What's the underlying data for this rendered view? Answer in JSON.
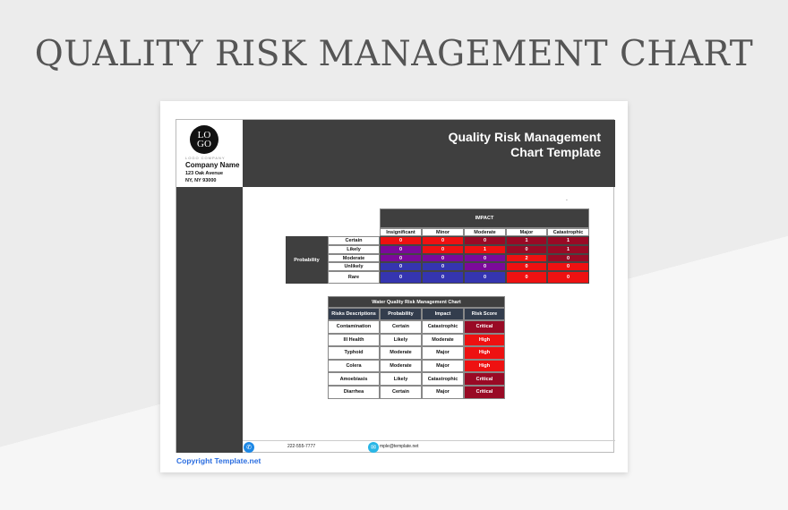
{
  "page_title": "QUALITY RISK MANAGEMENT CHART",
  "company": {
    "logo_text": "LOGO",
    "logo_sub": "LOGO COMPANY",
    "name": "Company Name",
    "address1": "123 Oak Avenue",
    "address2": "NY, NY 93000"
  },
  "header": {
    "title_line1": "Quality Risk Management",
    "title_line2": "Chart Template"
  },
  "colors": {
    "red": "#ee1111",
    "dark_red": "#990a25",
    "purple": "#7b0a9a",
    "blue": "#3535b0",
    "header_dark": "#3f3f3f",
    "table_header": "#333d4d"
  },
  "matrix": {
    "impact_label": "IMPACT",
    "probability_label": "Probability",
    "columns": [
      "Insignificant",
      "Minor",
      "Moderate",
      "Major",
      "Catastrophic"
    ],
    "rows": [
      {
        "label": "Certain",
        "values": [
          "0",
          "0",
          "0",
          "1",
          "1"
        ],
        "levels": [
          "red",
          "red",
          "dark_red",
          "dark_red",
          "dark_red"
        ]
      },
      {
        "label": "Likely",
        "values": [
          "0",
          "0",
          "1",
          "0",
          "1"
        ],
        "levels": [
          "purple",
          "red",
          "red",
          "dark_red",
          "dark_red"
        ]
      },
      {
        "label": "Moderate",
        "values": [
          "0",
          "0",
          "0",
          "2",
          "0"
        ],
        "levels": [
          "purple",
          "purple",
          "purple",
          "red",
          "dark_red"
        ]
      },
      {
        "label": "Unlikely",
        "values": [
          "0",
          "0",
          "0",
          "0",
          "0"
        ],
        "levels": [
          "blue",
          "blue",
          "purple",
          "red",
          "red"
        ]
      },
      {
        "label": "Rare",
        "values": [
          "0",
          "0",
          "0",
          "0",
          "0"
        ],
        "levels": [
          "blue",
          "blue",
          "blue",
          "red",
          "red"
        ]
      }
    ]
  },
  "risk_table": {
    "title": "Water Quality Risk Management Chart",
    "headers": [
      "Risks Descriptions",
      "Probability",
      "Impact",
      "Risk Score"
    ],
    "rows": [
      [
        "Contamination",
        "Certain",
        "Catastrophic",
        "Critical"
      ],
      [
        "Ill Health",
        "Likely",
        "Moderate",
        "High"
      ],
      [
        "Typhoid",
        "Moderate",
        "Major",
        "High"
      ],
      [
        "Colera",
        "Moderate",
        "Major",
        "High"
      ],
      [
        "Amoebiasis",
        "Likely",
        "Catastrophic",
        "Critical"
      ],
      [
        "Diarrhea",
        "Certain",
        "Major",
        "Critical"
      ]
    ]
  },
  "footer": {
    "phone": "222-555-7777",
    "email": "mple@template.net",
    "phone_icon": "phone-icon",
    "email_icon": "mail-icon"
  },
  "copyright": "Copyright Template.net"
}
